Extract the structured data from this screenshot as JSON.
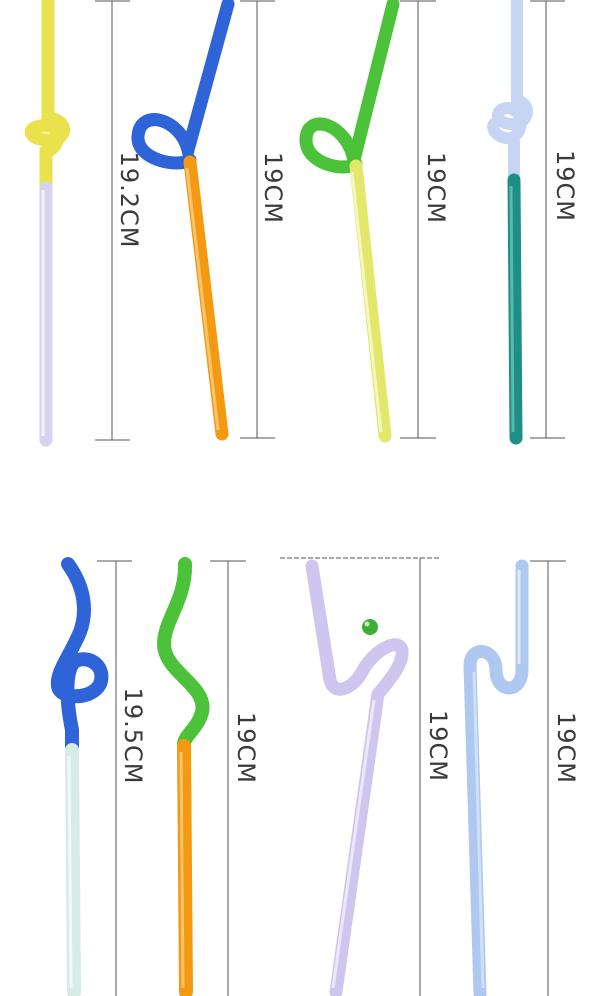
{
  "colors": {
    "yellow": "#e8df3a",
    "blue": "#2f63d8",
    "orange": "#f49a12",
    "green": "#4cc23a",
    "lime": "#e4e86a",
    "lavender": "#cfc6ef",
    "teal": "#1f8f86",
    "pale_blue": "#aec8f0",
    "pale_mint": "#d6ece6",
    "dim_line": "#555555"
  },
  "top_row": {
    "straw_1_length": "19.2CM",
    "straw_2_length": "19CM",
    "straw_3_length": "19CM",
    "straw_4_length": "19CM"
  },
  "bottom_row": {
    "straw_5_length": "19.5CM",
    "straw_6_length": "19CM",
    "straw_7_length": "19CM",
    "straw_8_length": "19CM"
  }
}
